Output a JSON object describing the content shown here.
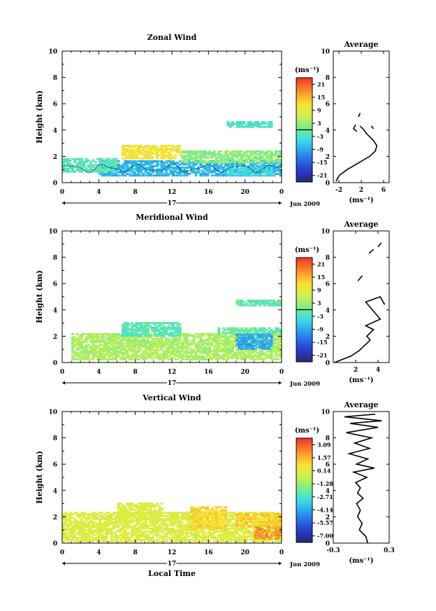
{
  "chart_data": [
    {
      "type": "heatmap",
      "title": "Zonal Wind",
      "ylabel": "Height (km)",
      "xlabel": "",
      "xlim": [
        0,
        24
      ],
      "ylim": [
        0,
        10
      ],
      "x_ticks": [
        "0",
        "4",
        "8",
        "12",
        "16",
        "20",
        "0"
      ],
      "y_ticks": [
        "0",
        "2",
        "4",
        "6",
        "8",
        "10"
      ],
      "date_label": "17",
      "date_suffix": "Jun 2009",
      "colorbar": {
        "unit": "(ms⁻¹)",
        "ticks": [
          "21",
          "15",
          "9",
          "3",
          "-3",
          "-9",
          "-15",
          "-21"
        ],
        "range": [
          -24,
          24
        ],
        "zero_line": true
      },
      "blobs": [
        {
          "x0": 4,
          "x1": 24,
          "y0": 0.5,
          "y1": 1.6,
          "value": -8
        },
        {
          "x0": 0,
          "x1": 6,
          "y0": 0.8,
          "y1": 1.8,
          "value": -2
        },
        {
          "x0": 6.5,
          "x1": 13,
          "y0": 1.8,
          "y1": 2.8,
          "value": 11
        },
        {
          "x0": 13,
          "x1": 24,
          "y0": 1.5,
          "y1": 2.4,
          "value": 2
        },
        {
          "x0": 18,
          "x1": 23,
          "y0": 0.5,
          "y1": 1.2,
          "value": -5
        },
        {
          "x0": 18,
          "x1": 23,
          "y0": 4.2,
          "y1": 4.6,
          "value": -3
        }
      ],
      "average": {
        "title": "Average",
        "xlabel": "(ms⁻¹)",
        "xlim": [
          -3,
          7
        ],
        "x_ticks": [
          "-2",
          "2",
          "6"
        ],
        "y_ticks": [
          "0",
          "2",
          "4",
          "6",
          "8",
          "10"
        ],
        "profile": [
          [
            -2.5,
            0.1
          ],
          [
            -2.3,
            0.3
          ],
          [
            -1.8,
            0.6
          ],
          [
            -0.5,
            1.0
          ],
          [
            1.5,
            1.5
          ],
          [
            3.5,
            2.0
          ],
          [
            4.5,
            2.4
          ],
          [
            4.8,
            2.8
          ],
          [
            4.2,
            3.2
          ],
          [
            3.0,
            3.7
          ],
          [
            2.3,
            4.1
          ],
          [
            1.8,
            4.3
          ]
        ],
        "fragments": [
          [
            [
              1.0,
              4.4
            ],
            [
              0.6,
              4.1
            ],
            [
              1.2,
              3.9
            ]
          ],
          [
            [
              1.5,
              5.0
            ],
            [
              1.8,
              5.3
            ]
          ],
          [
            [
              3.8,
              4.3
            ],
            [
              4.2,
              4.1
            ]
          ]
        ]
      }
    },
    {
      "type": "heatmap",
      "title": "Meridional Wind",
      "ylabel": "Height (km)",
      "xlabel": "",
      "xlim": [
        0,
        24
      ],
      "ylim": [
        0,
        10
      ],
      "x_ticks": [
        "0",
        "4",
        "8",
        "12",
        "16",
        "20",
        "0"
      ],
      "y_ticks": [
        "0",
        "2",
        "4",
        "6",
        "8",
        "10"
      ],
      "date_label": "17",
      "date_suffix": "Jun 2009",
      "colorbar": {
        "unit": "(ms⁻¹)",
        "ticks": [
          "21",
          "15",
          "9",
          "3",
          "-3",
          "-9",
          "-15",
          "-21"
        ],
        "range": [
          -24,
          24
        ],
        "zero_line": true
      },
      "blobs": [
        {
          "x0": 1,
          "x1": 24,
          "y0": 0.2,
          "y1": 2.2,
          "value": 4
        },
        {
          "x0": 6.5,
          "x1": 13,
          "y0": 2.0,
          "y1": 3.0,
          "value": -2
        },
        {
          "x0": 17,
          "x1": 24,
          "y0": 2.2,
          "y1": 2.6,
          "value": -1
        },
        {
          "x0": 19,
          "x1": 23,
          "y0": 1.0,
          "y1": 2.2,
          "value": -9
        },
        {
          "x0": 19,
          "x1": 24,
          "y0": 4.3,
          "y1": 4.7,
          "value": -1
        }
      ],
      "average": {
        "title": "Average",
        "xlabel": "(ms⁻¹)",
        "xlim": [
          0,
          5
        ],
        "x_ticks": [
          "2",
          "4"
        ],
        "y_ticks": [
          "0",
          "2",
          "4",
          "6",
          "8",
          "10"
        ],
        "profile": [
          [
            0.1,
            0.0
          ],
          [
            1.6,
            0.5
          ],
          [
            2.3,
            0.9
          ],
          [
            2.8,
            1.3
          ],
          [
            3.3,
            1.7
          ],
          [
            3.0,
            2.0
          ],
          [
            3.6,
            2.5
          ],
          [
            2.9,
            2.8
          ],
          [
            4.2,
            3.3
          ],
          [
            3.7,
            3.8
          ],
          [
            3.3,
            4.2
          ],
          [
            2.9,
            4.6
          ],
          [
            4.2,
            5.0
          ],
          [
            4.4,
            4.7
          ],
          [
            4.6,
            4.4
          ]
        ],
        "fragments": [
          [
            [
              2.2,
              6.2
            ],
            [
              2.6,
              6.6
            ]
          ],
          [
            [
              3.2,
              8.3
            ],
            [
              3.6,
              8.6
            ]
          ],
          [
            [
              4.0,
              8.8
            ],
            [
              4.3,
              9.1
            ]
          ]
        ]
      }
    },
    {
      "type": "heatmap",
      "title": "Vertical Wind",
      "ylabel": "Height (km)",
      "xlabel": "Local Time",
      "xlim": [
        0,
        24
      ],
      "ylim": [
        0,
        10
      ],
      "x_ticks": [
        "0",
        "4",
        "8",
        "12",
        "16",
        "20",
        "0"
      ],
      "y_ticks": [
        "0",
        "2",
        "4",
        "6",
        "8",
        "10"
      ],
      "date_label": "17",
      "date_suffix": "Jun 2009",
      "colorbar": {
        "unit": "(ms⁻¹)",
        "ticks": [
          "3.09",
          "1.57",
          "0.14",
          "-1.28",
          "-2.71",
          "-4.14",
          "-5.57",
          "-7.00"
        ],
        "range": [
          -7.72,
          3.8
        ],
        "zero_line": false
      },
      "blobs": [
        {
          "x0": 0,
          "x1": 24,
          "y0": 0.1,
          "y1": 2.3,
          "value": 0.0
        },
        {
          "x0": 6,
          "x1": 11,
          "y0": 2.0,
          "y1": 3.0,
          "value": 0.0
        },
        {
          "x0": 14,
          "x1": 18,
          "y0": 1.0,
          "y1": 2.8,
          "value": 1.0
        },
        {
          "x0": 21,
          "x1": 24,
          "y0": 0.3,
          "y1": 1.2,
          "value": 2.2
        },
        {
          "x0": 19,
          "x1": 24,
          "y0": 1.2,
          "y1": 2.2,
          "value": 1.2
        }
      ],
      "average": {
        "title": "Average",
        "xlabel": "(ms⁻¹)",
        "xlim": [
          -0.3,
          0.3
        ],
        "x_ticks": [
          "-0.3",
          "0.3"
        ],
        "y_ticks": [
          "0",
          "2",
          "4",
          "6",
          "8",
          "10"
        ],
        "profile": [
          [
            0.07,
            0.0
          ],
          [
            0.05,
            0.5
          ],
          [
            -0.02,
            1.0
          ],
          [
            0.01,
            1.5
          ],
          [
            -0.04,
            2.0
          ],
          [
            -0.01,
            2.5
          ],
          [
            -0.05,
            3.0
          ],
          [
            0.02,
            3.4
          ],
          [
            -0.04,
            3.8
          ],
          [
            -0.01,
            4.2
          ],
          [
            -0.06,
            4.6
          ],
          [
            0.06,
            5.0
          ],
          [
            -0.08,
            5.4
          ],
          [
            0.14,
            5.7
          ],
          [
            -0.05,
            6.0
          ],
          [
            0.07,
            6.4
          ],
          [
            -0.13,
            6.8
          ],
          [
            0.09,
            7.2
          ],
          [
            -0.07,
            7.6
          ],
          [
            0.11,
            8.0
          ],
          [
            -0.16,
            8.4
          ],
          [
            0.18,
            8.8
          ],
          [
            -0.12,
            9.1
          ],
          [
            0.22,
            9.3
          ],
          [
            -0.18,
            9.6
          ],
          [
            0.15,
            9.8
          ]
        ],
        "fragments": []
      }
    }
  ]
}
